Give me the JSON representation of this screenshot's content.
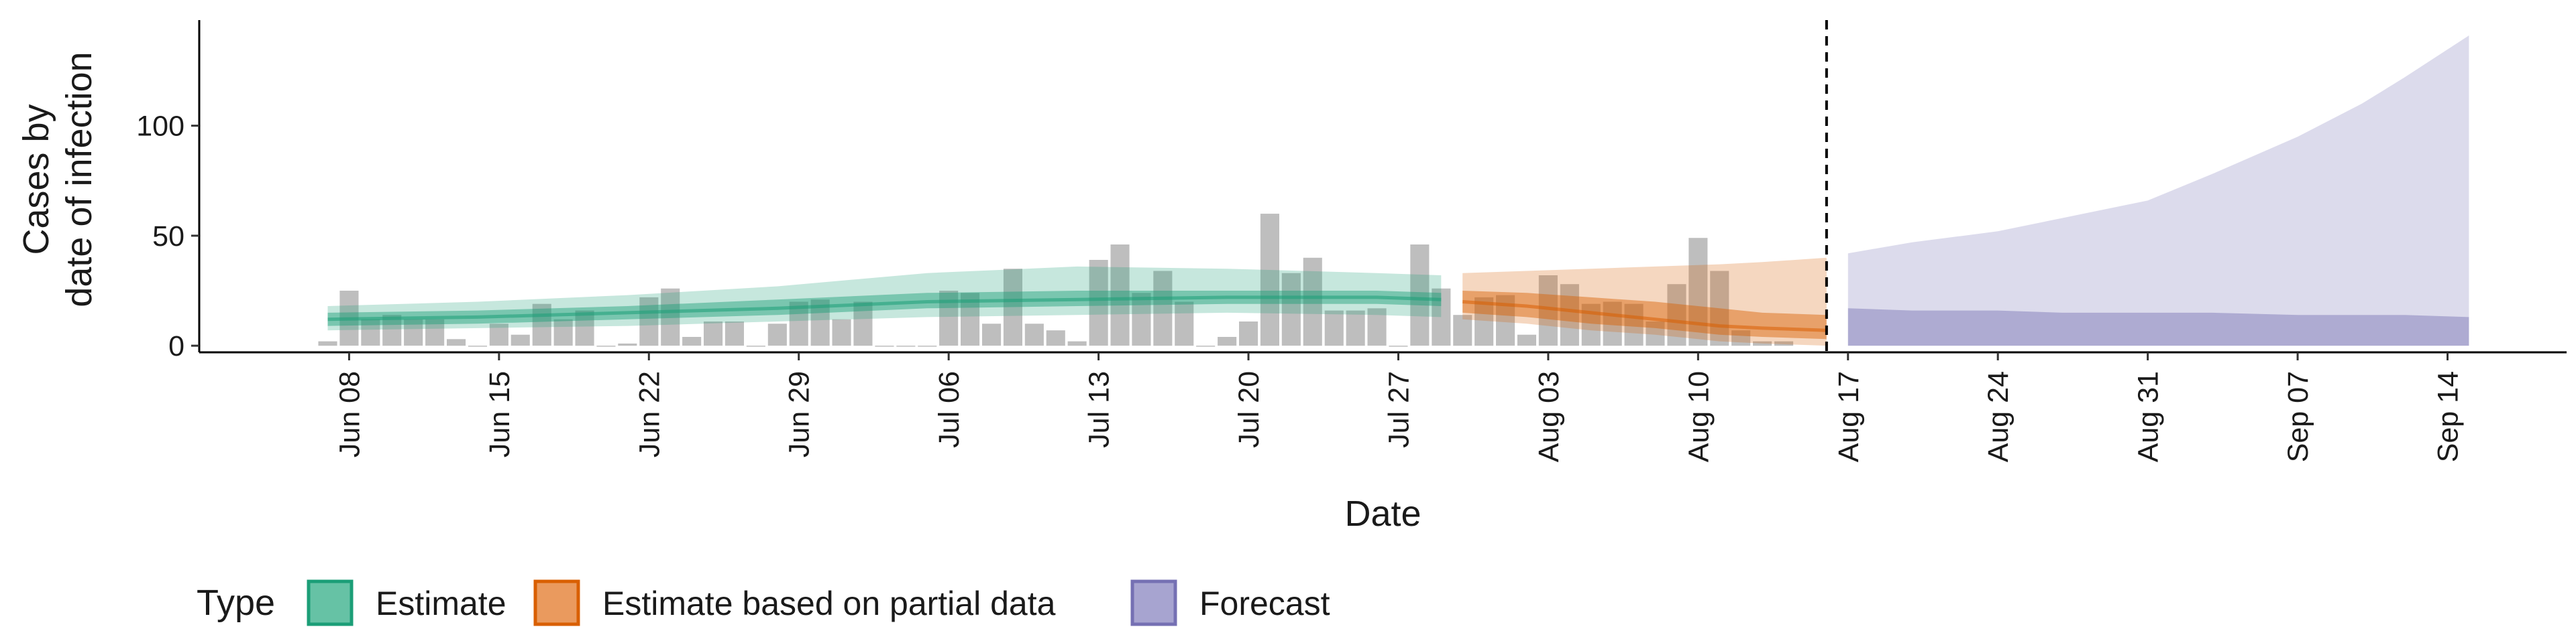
{
  "chart_data": {
    "type": "bar",
    "ylabel_lines": [
      "Cases by",
      "date of infection"
    ],
    "xlabel": "Date",
    "y_ticks": [
      0,
      50,
      100
    ],
    "ylim": [
      -3,
      148
    ],
    "x_start": "2020-06-01",
    "x_end": "2020-09-20",
    "x_ticks": [
      {
        "date": "2020-06-08",
        "label": "Jun 08"
      },
      {
        "date": "2020-06-15",
        "label": "Jun 15"
      },
      {
        "date": "2020-06-22",
        "label": "Jun 22"
      },
      {
        "date": "2020-06-29",
        "label": "Jun 29"
      },
      {
        "date": "2020-07-06",
        "label": "Jul 06"
      },
      {
        "date": "2020-07-13",
        "label": "Jul 13"
      },
      {
        "date": "2020-07-20",
        "label": "Jul 20"
      },
      {
        "date": "2020-07-27",
        "label": "Jul 27"
      },
      {
        "date": "2020-08-03",
        "label": "Aug 03"
      },
      {
        "date": "2020-08-10",
        "label": "Aug 10"
      },
      {
        "date": "2020-08-17",
        "label": "Aug 17"
      },
      {
        "date": "2020-08-24",
        "label": "Aug 24"
      },
      {
        "date": "2020-08-31",
        "label": "Aug 31"
      },
      {
        "date": "2020-09-07",
        "label": "Sep 07"
      },
      {
        "date": "2020-09-14",
        "label": "Sep 14"
      }
    ],
    "forecast_start": "2020-08-16",
    "reported_cases": {
      "start_date": "2020-06-07",
      "values": [
        2,
        25,
        12,
        14,
        12,
        12,
        3,
        0,
        10,
        5,
        19,
        12,
        16,
        0,
        1,
        22,
        26,
        4,
        11,
        11,
        0,
        10,
        20,
        21,
        12,
        20,
        0,
        0,
        0,
        25,
        24,
        10,
        35,
        10,
        7,
        2,
        39,
        46,
        24,
        34,
        20,
        0,
        4,
        11,
        60,
        33,
        40,
        16,
        16,
        17,
        0,
        46,
        26,
        14,
        22,
        23,
        5,
        32,
        28,
        19,
        20,
        19,
        11,
        28,
        49,
        34,
        7,
        2,
        2
      ]
    },
    "legend": {
      "title": "Type",
      "items": [
        {
          "label": "Estimate",
          "fill": "#66c2a5",
          "stroke": "#1b9e77"
        },
        {
          "label": "Estimate based on partial data",
          "fill": "#ea9a5e",
          "stroke": "#d95f02"
        },
        {
          "label": "Forecast",
          "fill": "#a7a4d0",
          "stroke": "#7570b3"
        }
      ]
    },
    "series": [
      {
        "type": "Estimate",
        "color": "#1b9e77",
        "dates": [
          "2020-06-07",
          "2020-06-14",
          "2020-06-21",
          "2020-06-28",
          "2020-07-05",
          "2020-07-12",
          "2020-07-19",
          "2020-07-26",
          "2020-07-29"
        ],
        "median": [
          12,
          13,
          15,
          17,
          20,
          21,
          22,
          22,
          21
        ],
        "inner_lower": [
          9,
          10,
          12,
          14,
          17,
          18,
          19,
          19,
          18
        ],
        "inner_upper": [
          15,
          16,
          18,
          21,
          24,
          25,
          25,
          25,
          24
        ],
        "outer_lower": [
          7,
          8,
          9,
          11,
          13,
          14,
          15,
          14,
          13
        ],
        "outer_upper": [
          18,
          20,
          23,
          27,
          33,
          36,
          35,
          33,
          32
        ]
      },
      {
        "type": "Estimate based on partial data",
        "color": "#d95f02",
        "dates": [
          "2020-07-30",
          "2020-08-02",
          "2020-08-05",
          "2020-08-08",
          "2020-08-11",
          "2020-08-13",
          "2020-08-16"
        ],
        "median": [
          20,
          18,
          15,
          12,
          9,
          8,
          7
        ],
        "inner_lower": [
          15,
          13,
          10,
          8,
          5,
          4,
          3
        ],
        "inner_upper": [
          25,
          24,
          22,
          20,
          17,
          15,
          14
        ],
        "outer_lower": [
          12,
          10,
          7,
          5,
          2,
          1,
          0
        ],
        "outer_upper": [
          33,
          34,
          35,
          36,
          37,
          38,
          40
        ]
      },
      {
        "type": "Forecast",
        "color": "#7570b3",
        "dates": [
          "2020-08-17",
          "2020-08-20",
          "2020-08-24",
          "2020-08-27",
          "2020-08-31",
          "2020-09-03",
          "2020-09-07",
          "2020-09-10",
          "2020-09-12",
          "2020-09-15"
        ],
        "inner_lower": [
          0,
          0,
          0,
          0,
          0,
          0,
          0,
          0,
          0,
          0
        ],
        "inner_upper": [
          17,
          16,
          16,
          15,
          15,
          15,
          14,
          14,
          14,
          13
        ],
        "outer_lower": [
          0,
          0,
          0,
          0,
          0,
          0,
          0,
          0,
          0,
          0
        ],
        "outer_upper": [
          42,
          47,
          52,
          58,
          66,
          78,
          95,
          110,
          122,
          141
        ]
      }
    ]
  }
}
